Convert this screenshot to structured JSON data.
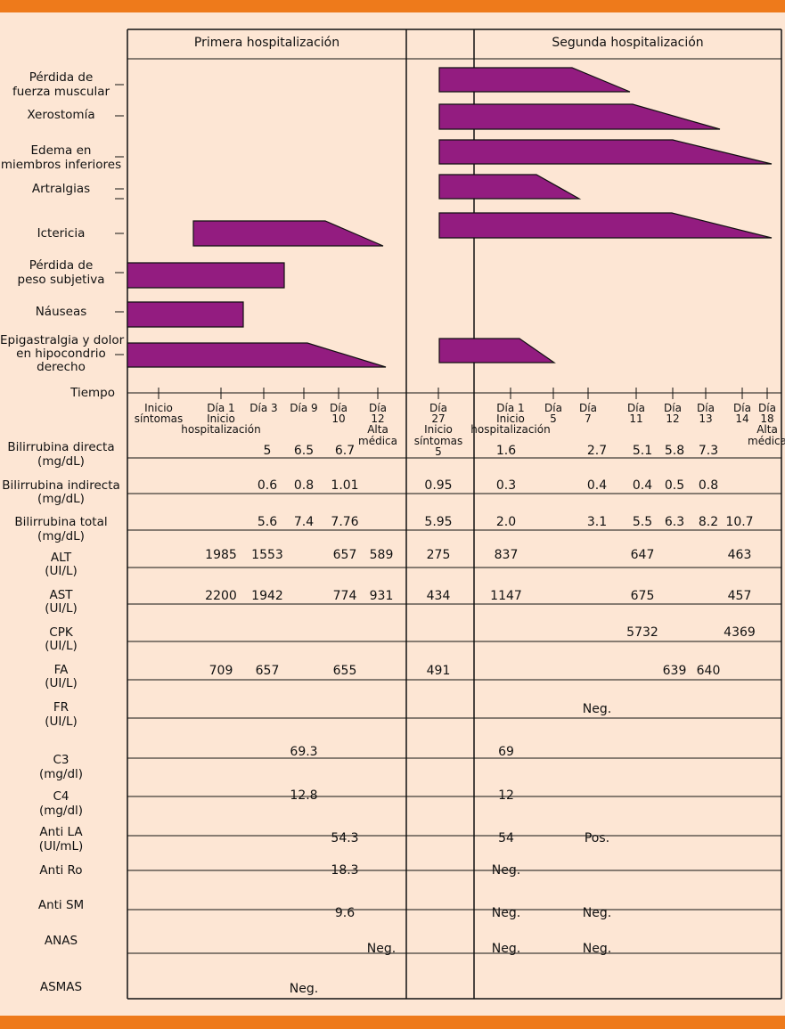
{
  "headers": {
    "first": "Primera hospitalización",
    "second": "Segunda hospitalización"
  },
  "symptoms": [
    {
      "label": [
        "Pérdida de",
        "fuerza muscular"
      ]
    },
    {
      "label": [
        "Xerostomía"
      ]
    },
    {
      "label": [
        "Edema en",
        "miembros inferiores"
      ]
    },
    {
      "label": [
        "Artralgias"
      ]
    },
    {
      "label": [
        "Ictericia"
      ]
    },
    {
      "label": [
        "Pérdida de",
        "peso subjetiva"
      ]
    },
    {
      "label": [
        "Náuseas"
      ]
    },
    {
      "label": [
        "Epigastralgia y dolor",
        "en hipocondrio",
        "derecho"
      ]
    }
  ],
  "tiempo_label": "Tiempo",
  "ticks": [
    {
      "lines": [
        "Inicio",
        "síntomas"
      ]
    },
    {
      "lines": [
        "Día 1",
        "Inicio",
        "hospitalización"
      ]
    },
    {
      "lines": [
        "Día 3"
      ]
    },
    {
      "lines": [
        "Día 9"
      ]
    },
    {
      "lines": [
        "Día",
        "10"
      ]
    },
    {
      "lines": [
        "Día",
        "12",
        "Alta",
        "médica"
      ]
    },
    {
      "lines": [
        "Día",
        "27",
        "Inicio",
        "síntomas",
        "5"
      ]
    },
    {
      "lines": [
        "Día 1",
        "Inicio",
        "hospitalización"
      ]
    },
    {
      "lines": [
        "Día",
        "5"
      ]
    },
    {
      "lines": [
        "Día",
        "7"
      ]
    },
    {
      "lines": [
        "Día",
        "11"
      ]
    },
    {
      "lines": [
        "Día",
        "12"
      ]
    },
    {
      "lines": [
        "Día",
        "13"
      ]
    },
    {
      "lines": [
        "Día",
        "14"
      ]
    },
    {
      "lines": [
        "Día",
        "18",
        "Alta",
        "médica"
      ]
    }
  ],
  "labs": [
    {
      "label": [
        "Bilirrubina directa",
        "(mg/dL)"
      ],
      "values": [
        [
          "5",
          "Día 3"
        ],
        [
          "6.5",
          "Día 9"
        ],
        [
          "6.7",
          "Día 10"
        ],
        [
          "1.6",
          "S Día 1"
        ],
        [
          "2.7",
          "S Día 7"
        ],
        [
          "5.1",
          "S Día 11"
        ],
        [
          "5.8",
          "S Día 12"
        ],
        [
          "7.3",
          "S Día 13"
        ]
      ]
    },
    {
      "label": [
        "Bilirrubina indirecta",
        "(mg/dL)"
      ],
      "values": [
        [
          "0.6",
          "Día 3"
        ],
        [
          "0.8",
          "Día 9"
        ],
        [
          "1.01",
          "Día 10"
        ],
        [
          "0.95",
          "Día 27"
        ],
        [
          "0.3",
          "S Día 1"
        ],
        [
          "0.4",
          "S Día 7"
        ],
        [
          "0.4",
          "S Día 11"
        ],
        [
          "0.5",
          "S Día 12"
        ],
        [
          "0.8",
          "S Día 13"
        ]
      ]
    },
    {
      "label": [
        "Bilirrubina total",
        "(mg/dL)"
      ],
      "values": [
        [
          "5.6",
          "Día 3"
        ],
        [
          "7.4",
          "Día 9"
        ],
        [
          "7.76",
          "Día 10"
        ],
        [
          "5.95",
          "Día 27"
        ],
        [
          "2.0",
          "S Día 1"
        ],
        [
          "3.1",
          "S Día 7"
        ],
        [
          "5.5",
          "S Día 11"
        ],
        [
          "6.3",
          "S Día 12"
        ],
        [
          "8.2",
          "S Día 13"
        ],
        [
          "10.7",
          "S Día 14"
        ]
      ]
    },
    {
      "label": [
        "ALT",
        "(UI/L)"
      ],
      "values": [
        [
          "1985",
          "Día 1"
        ],
        [
          "1553",
          "Día 3"
        ],
        [
          "657",
          "Día 10"
        ],
        [
          "589",
          "Día 12"
        ],
        [
          "275",
          "Día 27"
        ],
        [
          "837",
          "S Día 1"
        ],
        [
          "647",
          "S Día 11"
        ],
        [
          "463",
          "S Día 14"
        ]
      ]
    },
    {
      "label": [
        "AST",
        "(UI/L)"
      ],
      "values": [
        [
          "2200",
          "Día 1"
        ],
        [
          "1942",
          "Día 3"
        ],
        [
          "774",
          "Día 10"
        ],
        [
          "931",
          "Día 12"
        ],
        [
          "434",
          "Día 27"
        ],
        [
          "1147",
          "S Día 1"
        ],
        [
          "675",
          "S Día 11"
        ],
        [
          "457",
          "S Día 14"
        ]
      ]
    },
    {
      "label": [
        "CPK",
        "(UI/L)"
      ],
      "values": [
        [
          "5732",
          "S Día 11"
        ],
        [
          "4369",
          "S Día 14"
        ]
      ]
    },
    {
      "label": [
        "FA",
        "(UI/L)"
      ],
      "values": [
        [
          "709",
          "Día 1"
        ],
        [
          "657",
          "Día 3"
        ],
        [
          "655",
          "Día 10"
        ],
        [
          "491",
          "Día 27"
        ],
        [
          "639",
          "S Día 12"
        ],
        [
          "640",
          "S Día 13"
        ]
      ]
    },
    {
      "label": [
        "FR",
        "(UI/L)"
      ],
      "values": [
        [
          "Neg.",
          "S Día 7"
        ]
      ]
    },
    {
      "label": [
        "C3",
        "(mg/dl)"
      ],
      "values": [
        [
          "69.3",
          "Día 9"
        ],
        [
          "69",
          "S Día 1"
        ]
      ]
    },
    {
      "label": [
        "C4",
        "(mg/dl)"
      ],
      "values": [
        [
          "12.8",
          "Día 9"
        ],
        [
          "12",
          "S Día 1"
        ]
      ]
    },
    {
      "label": [
        "Anti LA",
        "(UI/mL)"
      ],
      "values": [
        [
          "54.3",
          "Día 10"
        ],
        [
          "54",
          "S Día 1"
        ],
        [
          "Pos.",
          "S Día 7"
        ]
      ]
    },
    {
      "label": [
        "Anti Ro"
      ],
      "values": [
        [
          "18.3",
          "Día 10"
        ],
        [
          "Neg.",
          "S Día 1"
        ]
      ]
    },
    {
      "label": [
        "Anti SM"
      ],
      "values": [
        [
          "9.6",
          "Día 10"
        ],
        [
          "Neg.",
          "S Día 1"
        ],
        [
          "Neg.",
          "S Día 7"
        ]
      ]
    },
    {
      "label": [
        "ANAS"
      ],
      "values": [
        [
          "Neg.",
          "Día 12"
        ],
        [
          "Neg.",
          "S Día 1"
        ],
        [
          "Neg.",
          "S Día 7"
        ]
      ]
    },
    {
      "label": [
        "ASMAS"
      ],
      "values": [
        [
          "Neg.",
          "Día 9"
        ]
      ]
    }
  ],
  "colors": {
    "bar": "#931c80",
    "background": "#fde6d4",
    "accent": "#ee7a1b"
  }
}
